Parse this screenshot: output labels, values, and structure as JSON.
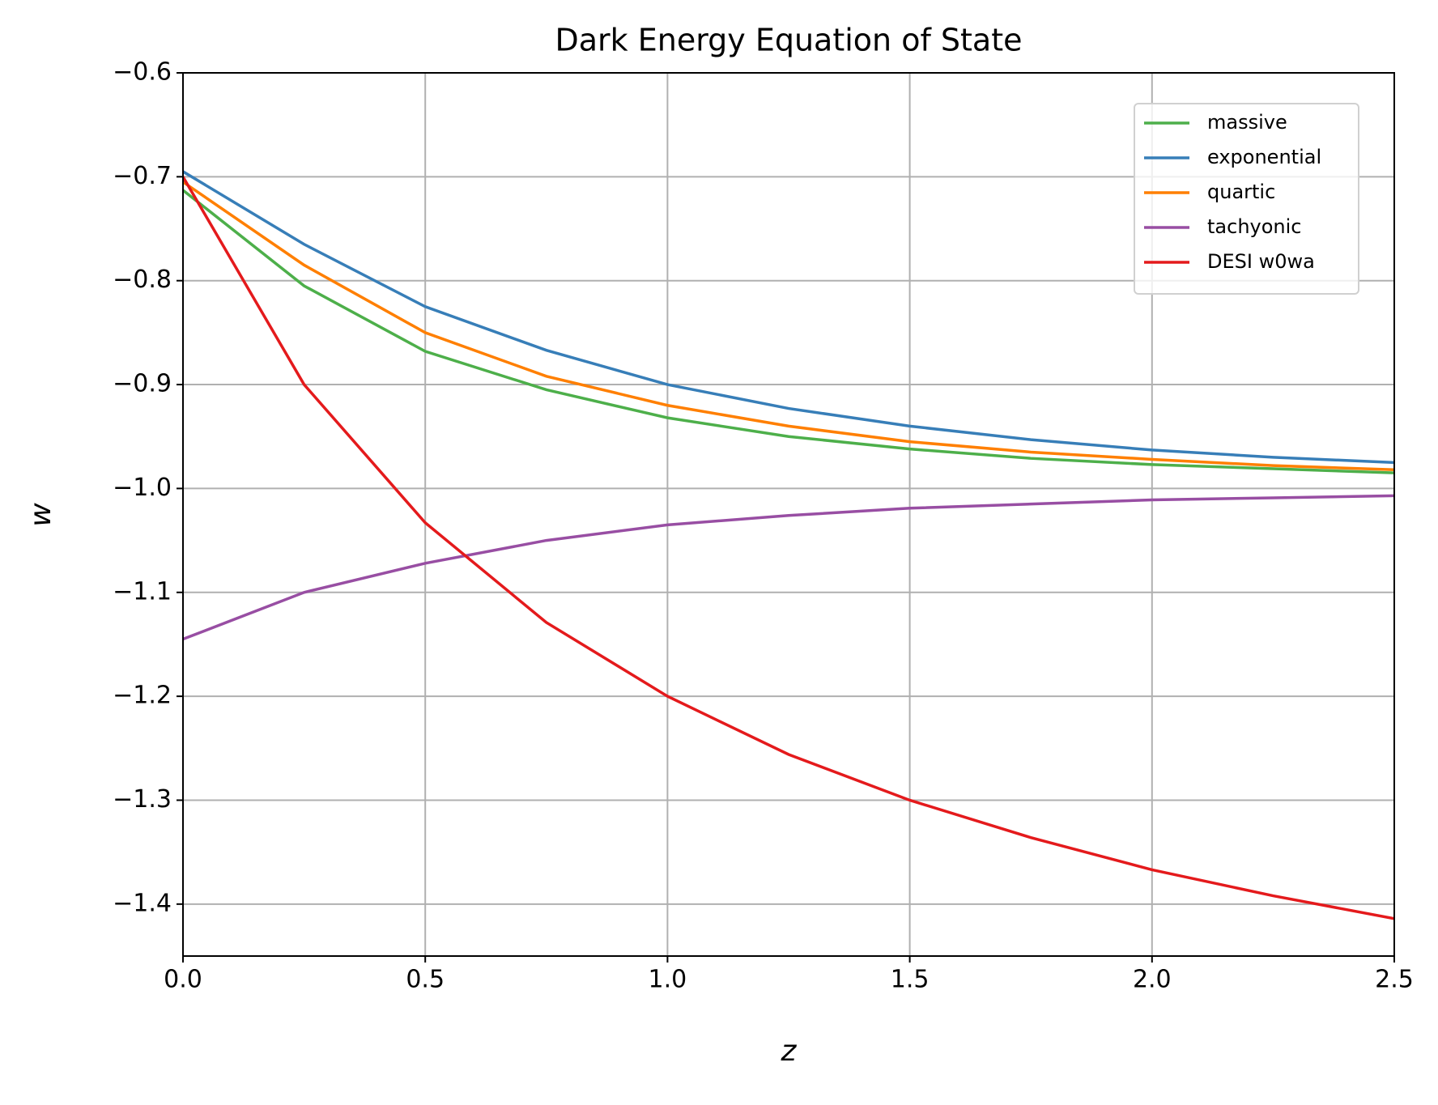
{
  "chart_data": {
    "type": "line",
    "title": "Dark Energy Equation of State",
    "xlabel": "z",
    "ylabel": "w",
    "x": [
      0,
      0.25,
      0.5,
      0.75,
      1,
      1.25,
      1.5,
      1.75,
      2,
      2.25,
      2.5
    ],
    "series": [
      {
        "name": "massive",
        "color": "#4daf4a",
        "values": [
          -0.713,
          -0.805,
          -0.868,
          -0.905,
          -0.932,
          -0.95,
          -0.962,
          -0.971,
          -0.977,
          -0.981,
          -0.985
        ]
      },
      {
        "name": "exponential",
        "color": "#377eb8",
        "values": [
          -0.695,
          -0.765,
          -0.825,
          -0.867,
          -0.9,
          -0.923,
          -0.94,
          -0.953,
          -0.963,
          -0.97,
          -0.975
        ]
      },
      {
        "name": "quartic",
        "color": "#ff7f00",
        "values": [
          -0.705,
          -0.785,
          -0.85,
          -0.892,
          -0.92,
          -0.94,
          -0.955,
          -0.965,
          -0.972,
          -0.978,
          -0.982
        ]
      },
      {
        "name": "tachyonic",
        "color": "#984ea3",
        "values": [
          -1.145,
          -1.1,
          -1.072,
          -1.05,
          -1.035,
          -1.026,
          -1.019,
          -1.015,
          -1.011,
          -1.009,
          -1.007
        ]
      },
      {
        "name": "DESI w0wa",
        "color": "#e41a1c",
        "values": [
          -0.7,
          -0.9,
          -1.033,
          -1.129,
          -1.2,
          -1.256,
          -1.3,
          -1.336,
          -1.367,
          -1.392,
          -1.414
        ]
      }
    ],
    "xlim": [
      0,
      2.5
    ],
    "xticks": [
      {
        "value": 0,
        "label": "0.0"
      },
      0.5,
      {
        "value": 1,
        "label": "1.0"
      },
      1.5,
      {
        "value": 2,
        "label": "2.0"
      },
      2.5
    ],
    "ylim": [
      -1.45,
      -0.6
    ],
    "yticks": [
      {
        "value": -0.6,
        "label": "−0.6"
      },
      {
        "value": -0.7,
        "label": "−0.7"
      },
      {
        "value": -0.8,
        "label": "−0.8"
      },
      {
        "value": -0.9,
        "label": "−0.9"
      },
      {
        "value": -1.0,
        "label": "−1.0"
      },
      {
        "value": -1.1,
        "label": "−1.1"
      },
      {
        "value": -1.2,
        "label": "−1.2"
      },
      {
        "value": -1.3,
        "label": "−1.3"
      },
      {
        "value": -1.4,
        "label": "−1.4"
      }
    ],
    "grid": true,
    "legend": "upper right"
  }
}
